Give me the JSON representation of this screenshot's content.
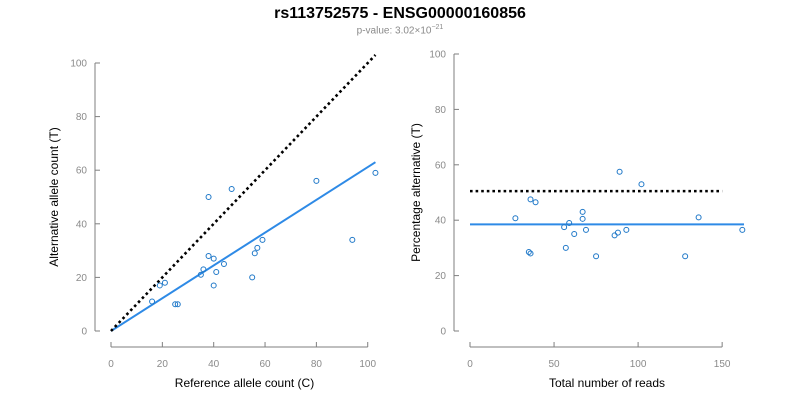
{
  "title": "rs113752575 - ENSG00000160856",
  "subtitle": {
    "prefix": "p-value: ",
    "mantissa": "3.02",
    "times": "×10",
    "exponent": "−21"
  },
  "colors": {
    "points": "#1f78c8",
    "fit_line": "#2e8ae6",
    "reference_line": "#000000",
    "axes": "#7f7f7f",
    "tick_text": "#8a8a8a"
  },
  "chart_data": [
    {
      "type": "scatter",
      "xlabel": "Reference allele count (C)",
      "ylabel": "Alternative allele count (T)",
      "xlim": [
        0,
        104
      ],
      "ylim": [
        0,
        100
      ],
      "xticks": [
        0,
        20,
        40,
        60,
        80,
        100
      ],
      "yticks": [
        0,
        20,
        40,
        60,
        80,
        100
      ],
      "grid": false,
      "points": [
        [
          16,
          11
        ],
        [
          19,
          17
        ],
        [
          21,
          18
        ],
        [
          25,
          10
        ],
        [
          26,
          10
        ],
        [
          35,
          21
        ],
        [
          36,
          23
        ],
        [
          38,
          50
        ],
        [
          38,
          28
        ],
        [
          40,
          27
        ],
        [
          40,
          17
        ],
        [
          41,
          22
        ],
        [
          44,
          25
        ],
        [
          47,
          53
        ],
        [
          55,
          20
        ],
        [
          56,
          29
        ],
        [
          57,
          31
        ],
        [
          59,
          34
        ],
        [
          80,
          56
        ],
        [
          94,
          34
        ],
        [
          103,
          59
        ]
      ],
      "lines": [
        {
          "name": "fit",
          "style": "solid",
          "x": [
            0,
            103
          ],
          "y": [
            0,
            63
          ]
        },
        {
          "name": "reference",
          "style": "dotted",
          "x": [
            0,
            103
          ],
          "y": [
            0,
            103
          ]
        }
      ]
    },
    {
      "type": "scatter",
      "xlabel": "Total number of reads",
      "ylabel": "Percentage alternative (T)",
      "xlim": [
        0,
        163
      ],
      "ylim": [
        0,
        100
      ],
      "xticks": [
        0,
        50,
        100,
        150
      ],
      "yticks": [
        0,
        20,
        40,
        60,
        80,
        100
      ],
      "grid": false,
      "points": [
        [
          27,
          40.7
        ],
        [
          35,
          28.5
        ],
        [
          36,
          28
        ],
        [
          36,
          47.5
        ],
        [
          39,
          46.5
        ],
        [
          56,
          37.5
        ],
        [
          57,
          30
        ],
        [
          59,
          39
        ],
        [
          62,
          35
        ],
        [
          67,
          43
        ],
        [
          67,
          40.5
        ],
        [
          69,
          36.5
        ],
        [
          75,
          27
        ],
        [
          86,
          34.5
        ],
        [
          88,
          35.5
        ],
        [
          89,
          57.5
        ],
        [
          93,
          36.5
        ],
        [
          102,
          53
        ],
        [
          128,
          27
        ],
        [
          136,
          41
        ],
        [
          162,
          36.5
        ]
      ],
      "lines": [
        {
          "name": "fit",
          "style": "solid",
          "x": [
            0,
            163
          ],
          "y": [
            38.5,
            38.5
          ]
        },
        {
          "name": "reference",
          "style": "dotted",
          "x": [
            0,
            150
          ],
          "y": [
            50.5,
            50.5
          ]
        }
      ]
    }
  ]
}
